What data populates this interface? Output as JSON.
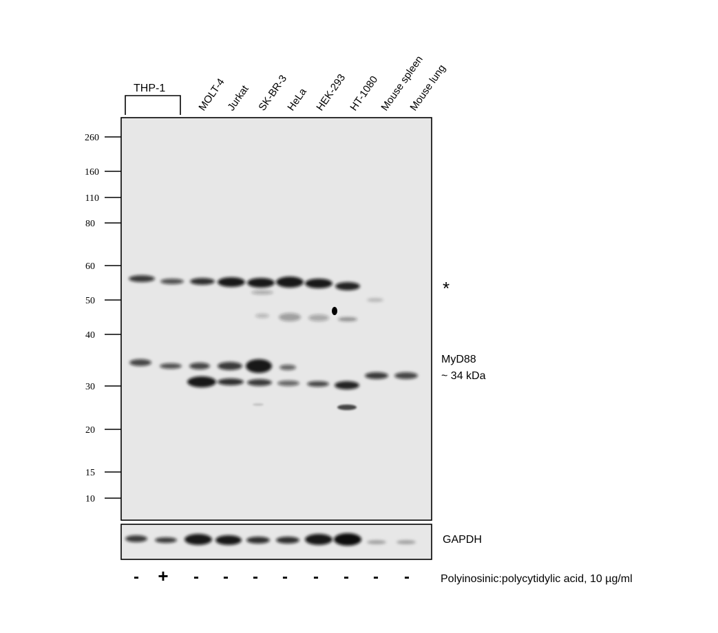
{
  "group_label": "THP-1",
  "lanes": [
    {
      "label": "",
      "treatment": "-"
    },
    {
      "label": "",
      "treatment": "+"
    },
    {
      "label": "MOLT-4",
      "treatment": "-"
    },
    {
      "label": "Jurkat",
      "treatment": "-"
    },
    {
      "label": "SK-BR-3",
      "treatment": "-"
    },
    {
      "label": "HeLa",
      "treatment": "-"
    },
    {
      "label": "HEK-293",
      "treatment": "-"
    },
    {
      "label": "HT-1080",
      "treatment": "-"
    },
    {
      "label": "Mouse spleen",
      "treatment": "-"
    },
    {
      "label": "Mouse lung",
      "treatment": "-"
    }
  ],
  "ladder": [
    "260",
    "160",
    "110",
    "80",
    "60",
    "50",
    "40",
    "30",
    "20",
    "15",
    "10"
  ],
  "annotations": {
    "nonspecific_marker": "*",
    "target_name": "MyD88",
    "target_size": "~ 34 kDa",
    "loading_control": "GAPDH",
    "treatment_label": "Polyinosinic:polycytidylic acid, 10 µg/ml"
  },
  "colors": {
    "blot_background": "#e7e7e7",
    "band": "#111111",
    "frame": "#000000"
  }
}
